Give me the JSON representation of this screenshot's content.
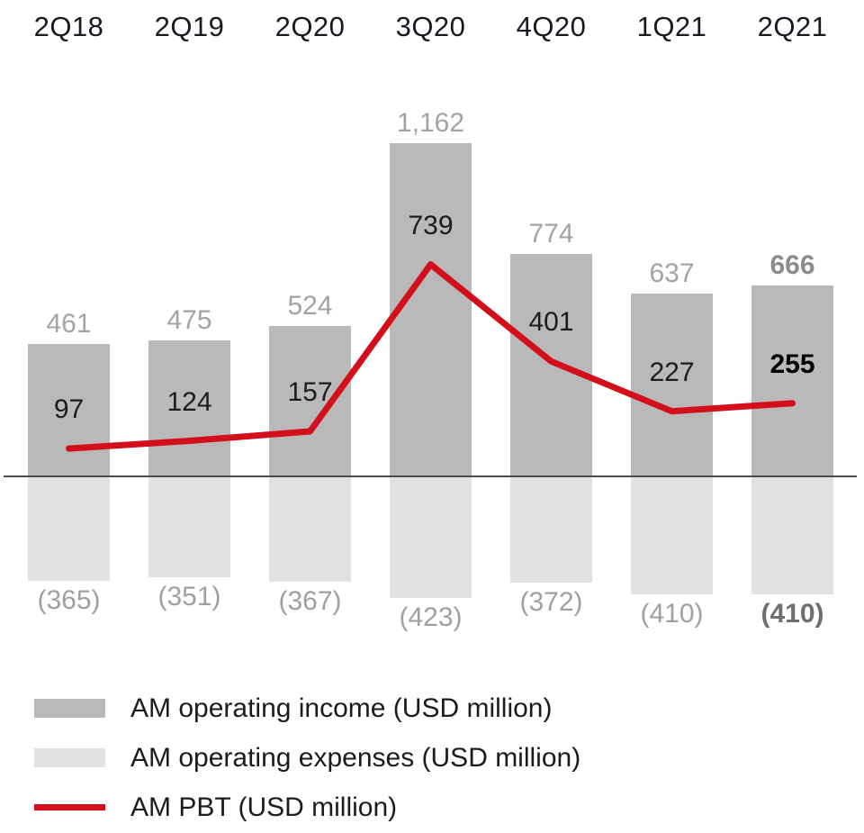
{
  "chart_data": {
    "type": "bar-line-combo",
    "title": "",
    "categories": [
      "2Q18",
      "2Q19",
      "2Q20",
      "3Q20",
      "4Q20",
      "1Q21",
      "2Q21"
    ],
    "series": [
      {
        "name": "AM operating income (USD million)",
        "type": "bar",
        "direction": "positive",
        "values": [
          461,
          475,
          524,
          1162,
          774,
          637,
          666
        ],
        "labels": [
          "461",
          "475",
          "524",
          "1,162",
          "774",
          "637",
          "666"
        ],
        "color": "#b9b9b9",
        "label_color": "#a3a3a3",
        "label_color_bold": "#8c8c8c"
      },
      {
        "name": "AM operating expenses (USD million)",
        "type": "bar",
        "direction": "negative",
        "values": [
          365,
          351,
          367,
          423,
          372,
          410,
          410
        ],
        "labels": [
          "(365)",
          "(351)",
          "(367)",
          "(423)",
          "(372)",
          "(410)",
          "(410)"
        ],
        "color": "#e2e2e2",
        "label_color": "#a0a0a0",
        "label_color_bold": "#6f6f6f"
      },
      {
        "name": "AM PBT (USD million)",
        "type": "line",
        "values": [
          97,
          124,
          157,
          739,
          401,
          227,
          255
        ],
        "labels": [
          "97",
          "124",
          "157",
          "739",
          "401",
          "227",
          "255"
        ],
        "color": "#d20f1a",
        "label_color": "#1c1c1c",
        "label_color_bold": "#000000"
      }
    ],
    "x_label_color": "#191922",
    "axis": {
      "zero_line": true,
      "zero_line_color": "#4c4c4c",
      "y_axis_visible": false
    },
    "gridlines": false,
    "legend_position": "bottom-left",
    "bold_last_category": true
  }
}
